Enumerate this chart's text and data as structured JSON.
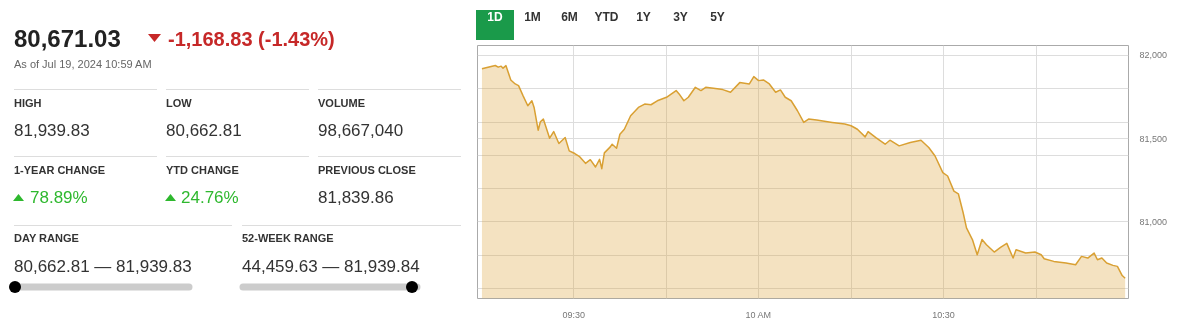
{
  "chart_data": [
    {
      "type": "other",
      "title": "80,671.03",
      "subtitle": "-1,168.83 (-1.43%)",
      "annotations": [
        "As of Jul 19, 2024 10:59 AM",
        "HIGH",
        "81,939.83",
        "LOW",
        "80,662.81",
        "VOLUME",
        "98,667,040",
        "1-YEAR CHANGE",
        "78.89%",
        "YTD CHANGE",
        "24.76%",
        "PREVIOUS CLOSE",
        "81,839.86",
        "DAY RANGE",
        "80,662.81 — 81,939.83",
        "52-WEEK RANGE",
        "44,459.63 — 81,939.84"
      ]
    },
    {
      "type": "area",
      "annotations": [
        "1D",
        "1M",
        "6M",
        "YTD",
        "1Y",
        "3Y",
        "5Y"
      ],
      "x": [
        9.252,
        9.288,
        9.296,
        9.304,
        9.309,
        9.317,
        9.33,
        9.342,
        9.351,
        9.363,
        9.376,
        9.387,
        9.393,
        9.404,
        9.41,
        9.418,
        9.435,
        9.446,
        9.46,
        9.477,
        9.488,
        9.503,
        9.515,
        9.532,
        9.545,
        9.559,
        9.57,
        9.576,
        9.583,
        9.599,
        9.604,
        9.616,
        9.625,
        9.637,
        9.654,
        9.675,
        9.692,
        9.709,
        9.726,
        9.751,
        9.777,
        9.785,
        9.798,
        9.81,
        9.829,
        9.844,
        9.857,
        9.878,
        9.903,
        9.924,
        9.949,
        9.975,
        9.987,
        10.0,
        10.013,
        10.029,
        10.046,
        10.059,
        10.072,
        10.088,
        10.105,
        10.122,
        10.135,
        10.157,
        10.199,
        10.233,
        10.25,
        10.267,
        10.288,
        10.296,
        10.317,
        10.342,
        10.355,
        10.38,
        10.41,
        10.439,
        10.46,
        10.477,
        10.498,
        10.511,
        10.528,
        10.54,
        10.553,
        10.562,
        10.578,
        10.591,
        10.604,
        10.616,
        10.637,
        10.654,
        10.671,
        10.688,
        10.696,
        10.722,
        10.747,
        10.764,
        10.772,
        10.798,
        10.831,
        10.857,
        10.873,
        10.89,
        10.907,
        10.916,
        10.928,
        10.941,
        10.958,
        10.97,
        10.983,
        10.991
      ],
      "series": [
        {
          "color": "#d9a033",
          "values": [
            81920,
            81940,
            81930,
            81936,
            81924,
            81939,
            81853,
            81829,
            81819,
            81759,
            81698,
            81728,
            81688,
            81551,
            81602,
            81618,
            81503,
            81543,
            81471,
            81507,
            81427,
            81411,
            81394,
            81352,
            81374,
            81330,
            81376,
            81320,
            81415,
            81451,
            81467,
            81443,
            81527,
            81557,
            81638,
            81688,
            81708,
            81704,
            81728,
            81749,
            81789,
            81769,
            81728,
            81749,
            81809,
            81789,
            81809,
            81803,
            81795,
            81779,
            81837,
            81829,
            81873,
            81849,
            81853,
            81829,
            81779,
            81793,
            81749,
            81728,
            81668,
            81598,
            81618,
            81612,
            81598,
            81588,
            81578,
            81557,
            81511,
            81543,
            81507,
            81467,
            81491,
            81457,
            81477,
            81491,
            81447,
            81396,
            81296,
            81276,
            81185,
            81169,
            81055,
            80964,
            80894,
            80803,
            80894,
            80863,
            80819,
            80847,
            80871,
            80783,
            80833,
            80813,
            80819,
            80803,
            80779,
            80763,
            80753,
            80743,
            80793,
            80783,
            80813,
            80773,
            80783,
            80753,
            80739,
            80733,
            80678,
            80662
          ]
        }
      ],
      "xlim": [
        9.24,
        11.0
      ],
      "xticks": [
        {
          "value": 9.5,
          "label": "09:30"
        },
        {
          "value": 9.75,
          "label": null
        },
        {
          "value": 10,
          "label": "10 AM"
        },
        {
          "value": 10.25,
          "label": null
        },
        {
          "value": 10.5,
          "label": "10:30"
        },
        {
          "value": 10.75,
          "label": null
        }
      ],
      "ylim": [
        80540,
        82060
      ],
      "yticks": [
        {
          "value": 80600,
          "label": null
        },
        {
          "value": 80800,
          "label": null
        },
        {
          "value": 81000,
          "label": "81,000"
        },
        {
          "value": 81200,
          "label": null
        },
        {
          "value": 81400,
          "label": null
        },
        {
          "value": 81500,
          "label": "81,500"
        },
        {
          "value": 81600,
          "label": null
        },
        {
          "value": 81800,
          "label": null
        },
        {
          "value": 82000,
          "label": "82,000"
        }
      ],
      "grid": true
    }
  ]
}
